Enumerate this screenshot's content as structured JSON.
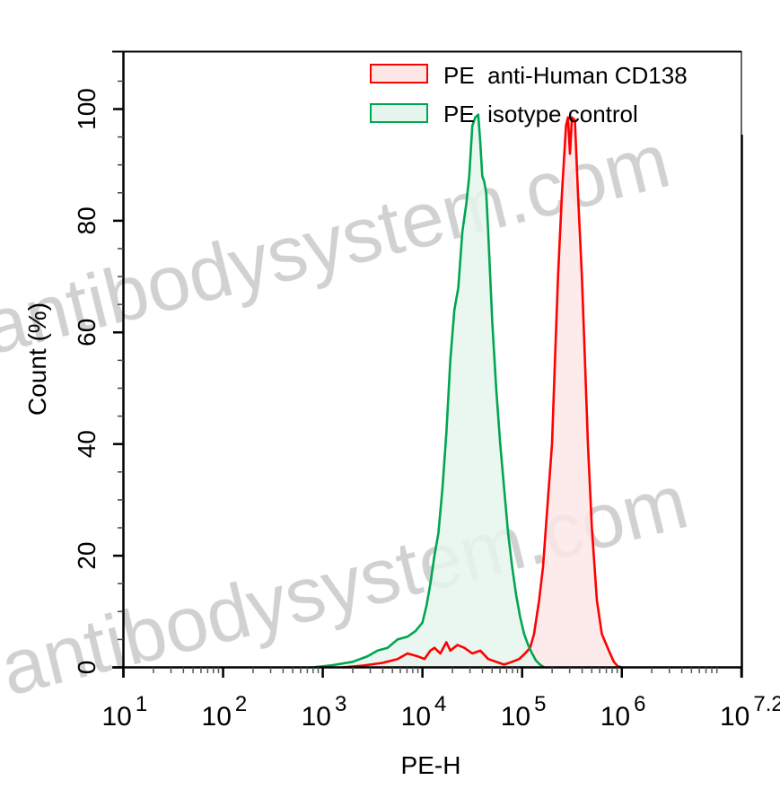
{
  "chart_data": {
    "type": "area",
    "title": "",
    "xlabel": "PE-H",
    "ylabel": "Count  (%)",
    "xscale": "log10",
    "xlim_log10": [
      1,
      7.2
    ],
    "ylim": [
      0,
      110
    ],
    "x_ticks": [
      {
        "base": "10",
        "exp": "1",
        "log": 1
      },
      {
        "base": "10",
        "exp": "2",
        "log": 2
      },
      {
        "base": "10",
        "exp": "3",
        "log": 3
      },
      {
        "base": "10",
        "exp": "4",
        "log": 4
      },
      {
        "base": "10",
        "exp": "5",
        "log": 5
      },
      {
        "base": "10",
        "exp": "6",
        "log": 6
      },
      {
        "base": "10",
        "exp": "7.2",
        "log": 7.2
      }
    ],
    "y_ticks": [
      0,
      20,
      40,
      60,
      80,
      100
    ],
    "y_minor_step": 5,
    "grid": false,
    "legend_position": "top-right",
    "legend": [
      {
        "label": "PE  anti-Human CD138",
        "line_color": "#ff0000",
        "fill_color": "#fde6e6"
      },
      {
        "label": "PE  isotype control",
        "line_color": "#00a651",
        "fill_color": "#e6f6ee"
      }
    ],
    "series": [
      {
        "name": "PE  anti-Human CD138",
        "line_color": "#ff0000",
        "fill_color": "#fde6e6",
        "x_log10": [
          3.2,
          3.4,
          3.6,
          3.75,
          3.85,
          3.95,
          4.02,
          4.08,
          4.12,
          4.18,
          4.24,
          4.28,
          4.35,
          4.42,
          4.5,
          4.58,
          4.66,
          4.74,
          4.82,
          4.9,
          4.97,
          5.03,
          5.08,
          5.12,
          5.17,
          5.21,
          5.25,
          5.3,
          5.33,
          5.36,
          5.4,
          5.44,
          5.46,
          5.48,
          5.5,
          5.53,
          5.56,
          5.6,
          5.63,
          5.66,
          5.7,
          5.75,
          5.8,
          5.87,
          5.92,
          5.96,
          6.0
        ],
        "y_percent": [
          0,
          0.3,
          0.8,
          1.5,
          2.5,
          2.0,
          1.5,
          3.0,
          3.5,
          2.5,
          4.5,
          3.0,
          4.0,
          3.5,
          2.5,
          3.0,
          1.5,
          1.0,
          0.5,
          1.0,
          1.5,
          2.5,
          3.5,
          6.0,
          12,
          18,
          28,
          40,
          55,
          70,
          85,
          97,
          98.5,
          92,
          98.5,
          98,
          85,
          70,
          55,
          40,
          25,
          12,
          6,
          3,
          1,
          0.2,
          0
        ]
      },
      {
        "name": "PE  isotype control",
        "line_color": "#00a651",
        "fill_color": "#e6f6ee",
        "x_log10": [
          2.9,
          3.1,
          3.3,
          3.45,
          3.55,
          3.65,
          3.75,
          3.85,
          3.93,
          4.0,
          4.04,
          4.08,
          4.12,
          4.16,
          4.2,
          4.24,
          4.28,
          4.32,
          4.36,
          4.4,
          4.44,
          4.47,
          4.5,
          4.53,
          4.56,
          4.58,
          4.6,
          4.62,
          4.64,
          4.66,
          4.7,
          4.74,
          4.78,
          4.82,
          4.86,
          4.9,
          4.94,
          4.98,
          5.02,
          5.06,
          5.1,
          5.14,
          5.18,
          5.22
        ],
        "y_percent": [
          0,
          0.4,
          1.0,
          2.0,
          3.0,
          3.5,
          5.0,
          5.5,
          6.5,
          8.0,
          11,
          15,
          20,
          24,
          32,
          42,
          55,
          64,
          68,
          78,
          83,
          88,
          97,
          98.5,
          99,
          94,
          88,
          87,
          85,
          78,
          62,
          50,
          40,
          32,
          24,
          18,
          13,
          9,
          6,
          4,
          2.5,
          1.2,
          0.5,
          0
        ]
      }
    ]
  },
  "watermark": {
    "text_1": "antibodysystem.com",
    "text_2": "antibodysystem.com",
    "color": "#c8c8c8"
  }
}
